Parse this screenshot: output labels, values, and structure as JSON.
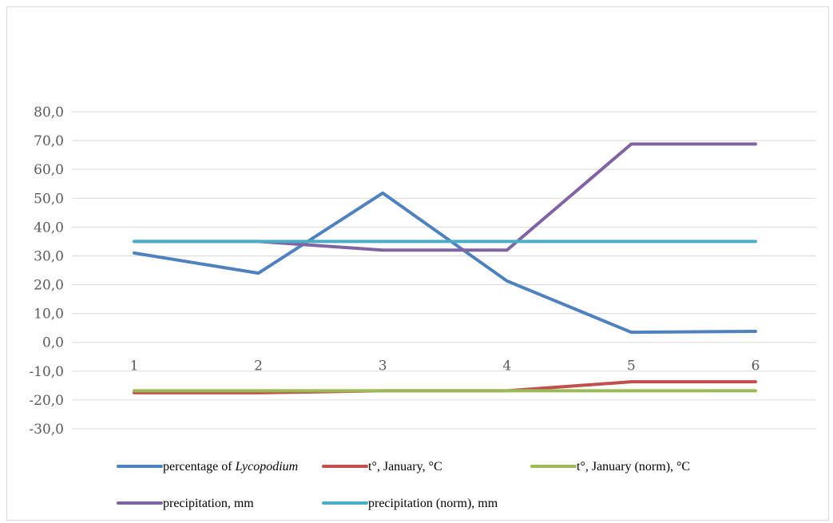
{
  "chart_data": {
    "type": "line",
    "categories": [
      "1",
      "2",
      "3",
      "4",
      "5",
      "6"
    ],
    "y_tick_labels": [
      "80,0",
      "70,0",
      "60,0",
      "50,0",
      "40,0",
      "30,0",
      "20,0",
      "10,0",
      "0,0",
      "-10,0",
      "-20,0",
      "-30,0"
    ],
    "y_ticks": [
      80,
      70,
      60,
      50,
      40,
      30,
      20,
      10,
      0,
      -10,
      -20,
      -30
    ],
    "ylim": [
      -30,
      80
    ],
    "grid": true,
    "legend_position": "bottom",
    "series": [
      {
        "name": "percentage of Lycopodium",
        "legend_prefix": "percentage of ",
        "legend_italic": "Lycopodium",
        "color": "#4f81bd",
        "values": [
          31.0,
          24.0,
          51.8,
          21.3,
          3.5,
          3.8
        ]
      },
      {
        "name": "t°, January, °C",
        "color": "#c0504d",
        "values": [
          -17.5,
          -17.5,
          -16.8,
          -16.8,
          -13.7,
          -13.7
        ]
      },
      {
        "name": "t°, January (norm), °C",
        "color": "#9bbb59",
        "values": [
          -16.8,
          -16.8,
          -16.8,
          -16.8,
          -16.8,
          -16.8
        ]
      },
      {
        "name": "precipitation, mm",
        "color": "#8064a2",
        "values": [
          35.0,
          35.0,
          32.0,
          32.0,
          68.8,
          68.8
        ]
      },
      {
        "name": "precipitation (norm), mm",
        "color": "#4bacc6",
        "values": [
          35.0,
          35.0,
          35.0,
          35.0,
          35.0,
          35.0
        ]
      }
    ]
  }
}
